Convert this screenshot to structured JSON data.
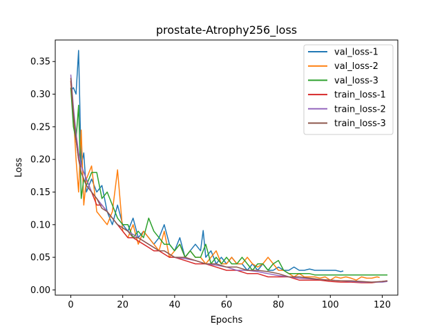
{
  "chart_data": {
    "type": "line",
    "title": "prostate-Atrophy256_loss",
    "xlabel": "Epochs",
    "ylabel": "Loss",
    "xlim": [
      -6,
      126
    ],
    "ylim": [
      -0.008,
      0.383
    ],
    "xticks": [
      0,
      20,
      40,
      60,
      80,
      100,
      120
    ],
    "yticks": [
      0.0,
      0.05,
      0.1,
      0.15,
      0.2,
      0.25,
      0.3,
      0.35
    ],
    "xtick_labels": [
      "0",
      "20",
      "40",
      "60",
      "80",
      "100",
      "120"
    ],
    "ytick_labels": [
      "0.00",
      "0.05",
      "0.10",
      "0.15",
      "0.20",
      "0.25",
      "0.30",
      "0.35"
    ],
    "grid": false,
    "legend_position": "top-right",
    "series": [
      {
        "name": "val_loss-1",
        "color": "#1f77b4",
        "x": [
          0,
          1,
          2,
          3,
          4,
          5,
          6,
          8,
          10,
          12,
          14,
          16,
          18,
          20,
          22,
          24,
          26,
          28,
          30,
          32,
          34,
          36,
          38,
          40,
          42,
          44,
          46,
          48,
          50,
          51,
          52,
          54,
          56,
          58,
          60,
          62,
          64,
          66,
          68,
          70,
          72,
          74,
          76,
          78,
          80,
          82,
          84,
          86,
          88,
          90,
          92,
          94,
          96,
          98,
          100,
          102,
          104,
          105
        ],
        "y": [
          0.305,
          0.31,
          0.3,
          0.367,
          0.19,
          0.21,
          0.15,
          0.17,
          0.15,
          0.16,
          0.12,
          0.1,
          0.13,
          0.1,
          0.09,
          0.11,
          0.08,
          0.09,
          0.08,
          0.07,
          0.08,
          0.1,
          0.07,
          0.06,
          0.08,
          0.05,
          0.06,
          0.07,
          0.06,
          0.091,
          0.05,
          0.06,
          0.04,
          0.05,
          0.04,
          0.05,
          0.04,
          0.04,
          0.03,
          0.04,
          0.03,
          0.04,
          0.03,
          0.03,
          0.035,
          0.03,
          0.03,
          0.035,
          0.03,
          0.03,
          0.032,
          0.03,
          0.03,
          0.03,
          0.03,
          0.03,
          0.028,
          0.029
        ]
      },
      {
        "name": "val_loss-2",
        "color": "#ff7f0e",
        "x": [
          0,
          1,
          2,
          3,
          4,
          5,
          6,
          8,
          10,
          12,
          14,
          16,
          18,
          20,
          22,
          24,
          26,
          28,
          30,
          32,
          34,
          36,
          38,
          40,
          42,
          44,
          46,
          48,
          50,
          52,
          54,
          56,
          58,
          60,
          62,
          64,
          66,
          68,
          70,
          72,
          74,
          76,
          78,
          80,
          82,
          84,
          86,
          88,
          90,
          92,
          94,
          96,
          98,
          100,
          102,
          104,
          106,
          108,
          110,
          112,
          114,
          116,
          118,
          119
        ],
        "y": [
          0.32,
          0.27,
          0.2,
          0.15,
          0.245,
          0.13,
          0.17,
          0.19,
          0.12,
          0.11,
          0.1,
          0.12,
          0.184,
          0.09,
          0.08,
          0.1,
          0.07,
          0.09,
          0.08,
          0.07,
          0.06,
          0.09,
          0.05,
          0.06,
          0.07,
          0.05,
          0.06,
          0.05,
          0.05,
          0.04,
          0.05,
          0.06,
          0.04,
          0.04,
          0.05,
          0.04,
          0.04,
          0.05,
          0.04,
          0.035,
          0.04,
          0.05,
          0.04,
          0.03,
          0.03,
          0.025,
          0.02,
          0.025,
          0.02,
          0.02,
          0.02,
          0.018,
          0.02,
          0.015,
          0.02,
          0.018,
          0.02,
          0.018,
          0.015,
          0.02,
          0.018,
          0.018,
          0.02,
          0.019
        ]
      },
      {
        "name": "val_loss-3",
        "color": "#2ca02c",
        "x": [
          0,
          1,
          2,
          3,
          4,
          5,
          6,
          8,
          10,
          12,
          14,
          16,
          18,
          20,
          22,
          24,
          26,
          28,
          30,
          32,
          34,
          36,
          38,
          40,
          42,
          44,
          46,
          48,
          50,
          52,
          54,
          56,
          58,
          60,
          62,
          64,
          66,
          68,
          70,
          72,
          74,
          76,
          78,
          80,
          82,
          84,
          86,
          88,
          90,
          92,
          94,
          96,
          98,
          100,
          102,
          104,
          106,
          108,
          110,
          112,
          114,
          116,
          118,
          120,
          122
        ],
        "y": [
          0.31,
          0.25,
          0.23,
          0.283,
          0.14,
          0.17,
          0.16,
          0.18,
          0.18,
          0.14,
          0.15,
          0.13,
          0.11,
          0.1,
          0.1,
          0.08,
          0.09,
          0.08,
          0.11,
          0.09,
          0.08,
          0.07,
          0.07,
          0.06,
          0.07,
          0.05,
          0.06,
          0.05,
          0.05,
          0.07,
          0.04,
          0.05,
          0.04,
          0.05,
          0.04,
          0.04,
          0.05,
          0.04,
          0.03,
          0.04,
          0.04,
          0.03,
          0.04,
          0.045,
          0.03,
          0.025,
          0.025,
          0.025,
          0.025,
          0.025,
          0.023,
          0.023,
          0.023,
          0.023,
          0.023,
          0.023,
          0.023,
          0.023,
          0.023,
          0.023,
          0.023,
          0.023,
          0.023,
          0.023,
          0.023
        ]
      },
      {
        "name": "train_loss-1",
        "color": "#d62728",
        "x": [
          0,
          1,
          2,
          3,
          4,
          6,
          8,
          10,
          12,
          14,
          16,
          18,
          20,
          22,
          24,
          26,
          28,
          30,
          32,
          34,
          36,
          38,
          40,
          44,
          48,
          52,
          56,
          60,
          64,
          68,
          72,
          76,
          80,
          84,
          88,
          92,
          96,
          100,
          104,
          108,
          112,
          116,
          120,
          122
        ],
        "y": [
          0.32,
          0.27,
          0.23,
          0.2,
          0.19,
          0.17,
          0.15,
          0.13,
          0.13,
          0.12,
          0.11,
          0.1,
          0.09,
          0.08,
          0.08,
          0.075,
          0.07,
          0.065,
          0.06,
          0.06,
          0.055,
          0.05,
          0.05,
          0.045,
          0.04,
          0.04,
          0.035,
          0.03,
          0.03,
          0.025,
          0.025,
          0.02,
          0.02,
          0.02,
          0.015,
          0.015,
          0.015,
          0.013,
          0.012,
          0.012,
          0.011,
          0.011,
          0.013,
          0.014
        ]
      },
      {
        "name": "train_loss-2",
        "color": "#9467bd",
        "x": [
          0,
          1,
          2,
          3,
          4,
          6,
          8,
          10,
          12,
          14,
          16,
          18,
          20,
          22,
          24,
          26,
          28,
          30,
          32,
          34,
          36,
          38,
          40,
          44,
          48,
          52,
          56,
          60,
          64,
          68,
          72,
          76,
          80,
          84,
          88,
          92,
          96,
          100,
          104,
          108,
          112,
          116,
          120,
          122
        ],
        "y": [
          0.33,
          0.28,
          0.24,
          0.21,
          0.19,
          0.17,
          0.15,
          0.14,
          0.13,
          0.12,
          0.11,
          0.1,
          0.095,
          0.09,
          0.085,
          0.08,
          0.075,
          0.07,
          0.065,
          0.06,
          0.06,
          0.055,
          0.05,
          0.048,
          0.045,
          0.04,
          0.038,
          0.035,
          0.03,
          0.03,
          0.028,
          0.025,
          0.022,
          0.02,
          0.018,
          0.017,
          0.016,
          0.015,
          0.014,
          0.013,
          0.012,
          0.012,
          0.012,
          0.013
        ]
      },
      {
        "name": "train_loss-3",
        "color": "#8c564b",
        "x": [
          0,
          1,
          2,
          3,
          4,
          6,
          8,
          10,
          12,
          14,
          16,
          18,
          20,
          22,
          24,
          26,
          28,
          30,
          32,
          34,
          36,
          38,
          40,
          44,
          48,
          52,
          56,
          60,
          64,
          68,
          72,
          76,
          80,
          84,
          88,
          92,
          96,
          100,
          104,
          108,
          112,
          116,
          120,
          122
        ],
        "y": [
          0.325,
          0.27,
          0.23,
          0.2,
          0.18,
          0.16,
          0.15,
          0.14,
          0.125,
          0.12,
          0.11,
          0.1,
          0.095,
          0.09,
          0.08,
          0.08,
          0.075,
          0.07,
          0.065,
          0.06,
          0.06,
          0.055,
          0.05,
          0.05,
          0.045,
          0.04,
          0.04,
          0.035,
          0.035,
          0.03,
          0.03,
          0.028,
          0.025,
          0.02,
          0.02,
          0.018,
          0.016,
          0.015,
          0.014,
          0.014,
          0.013,
          0.012,
          0.013,
          0.014
        ]
      }
    ]
  }
}
